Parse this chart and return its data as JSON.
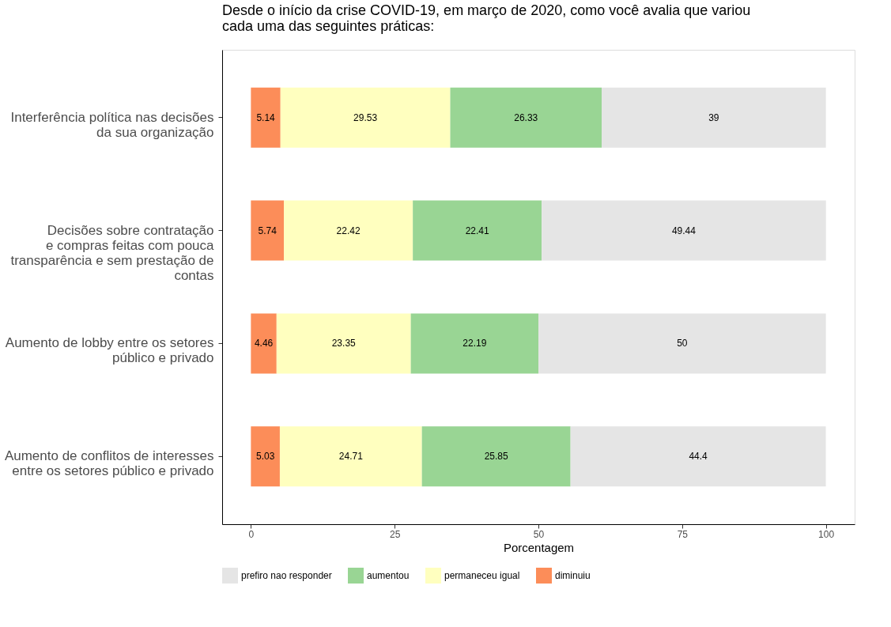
{
  "chart_data": {
    "type": "bar",
    "orientation": "horizontal",
    "stacked": true,
    "title": "Desde o início da crise COVID-19, em março de 2020, como você avalia que variou\ncada uma das seguintes práticas:",
    "xlabel": "Porcentagem",
    "categories": [
      "Interferência política nas decisões\nda sua organização",
      "Decisões sobre contratação\ne compras feitas com pouca\ntransparência e sem prestação de\ncontas",
      "Aumento de lobby entre os setores\npúblico e privado",
      "Aumento de conflitos de interesses\nentre os setores público e privado"
    ],
    "series": [
      {
        "name": "diminuiu",
        "color": "#fc8d59",
        "values": [
          5.14,
          5.74,
          4.46,
          5.03
        ]
      },
      {
        "name": "permaneceu igual",
        "color": "#ffffbf",
        "values": [
          29.53,
          22.42,
          23.35,
          24.71
        ]
      },
      {
        "name": "aumentou",
        "color": "#99d594",
        "values": [
          26.33,
          22.41,
          22.19,
          25.85
        ]
      },
      {
        "name": "prefiro nao responder",
        "color": "#e5e5e5",
        "values": [
          39,
          49.44,
          50,
          44.4
        ]
      }
    ],
    "xlim": [
      -5,
      105
    ],
    "xticks": [
      0,
      25,
      50,
      75,
      100
    ],
    "grid": false,
    "legend": "bottom",
    "data_labels": true
  }
}
